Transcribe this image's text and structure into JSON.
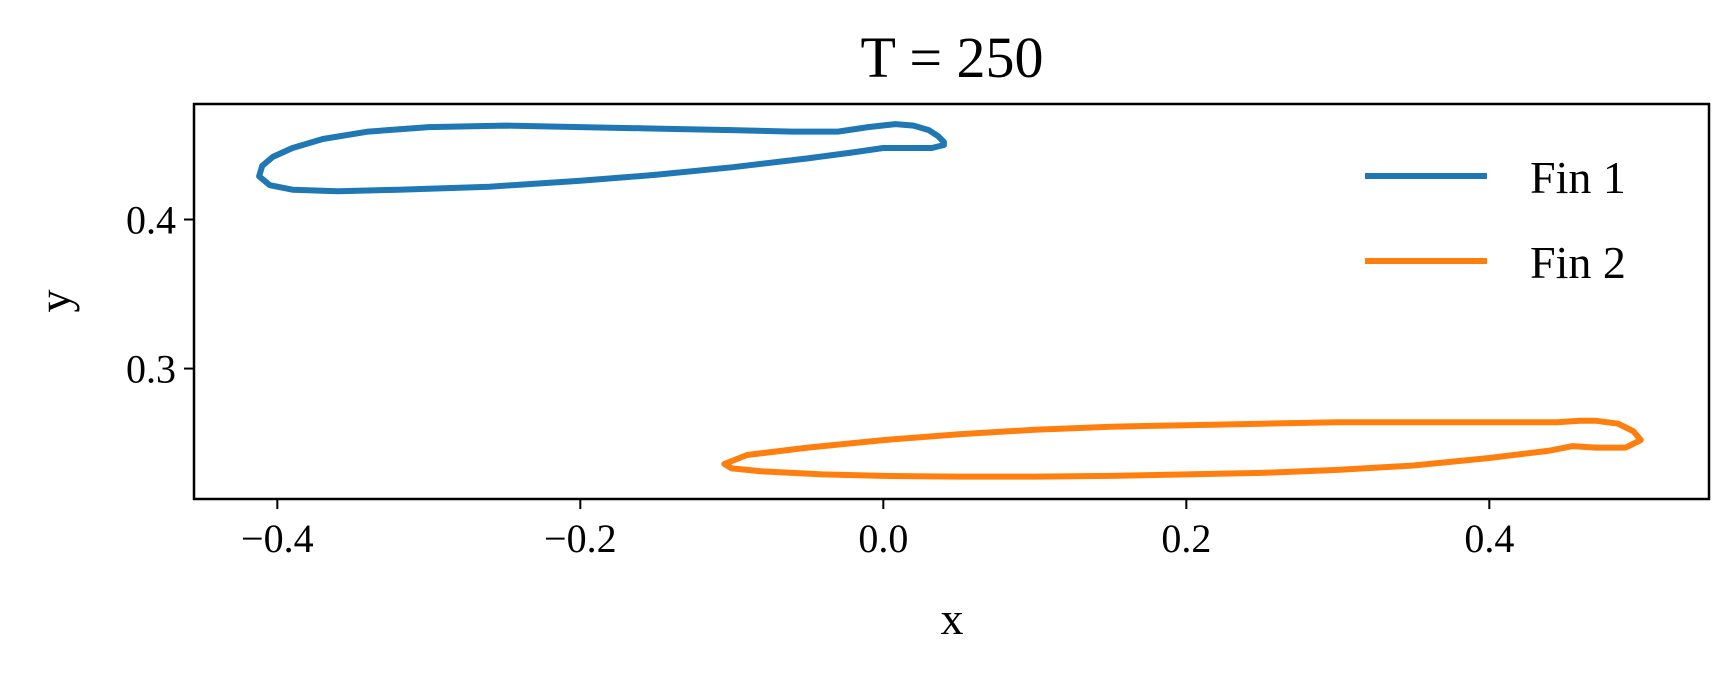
{
  "chart_data": {
    "type": "line",
    "title": "T = 250",
    "xlabel": "x",
    "ylabel": "y",
    "xlim": [
      -0.455,
      0.545
    ],
    "ylim": [
      0.2125,
      0.4775
    ],
    "xticks": [
      -0.4,
      -0.2,
      0.0,
      0.2,
      0.4
    ],
    "xtick_labels": [
      "−0.4",
      "−0.2",
      "0.0",
      "0.2",
      "0.4"
    ],
    "yticks": [
      0.3,
      0.4
    ],
    "ytick_labels": [
      "0.3",
      "0.4"
    ],
    "grid": false,
    "legend_position": "top-right",
    "series": [
      {
        "name": "Fin 1",
        "color": "#1f77b4",
        "x": [
          0.04,
          0.036,
          0.03,
          0.02,
          0.008,
          -0.01,
          -0.03,
          -0.06,
          -0.1,
          -0.15,
          -0.2,
          -0.25,
          -0.3,
          -0.34,
          -0.37,
          -0.39,
          -0.403,
          -0.41,
          -0.412,
          -0.405,
          -0.39,
          -0.36,
          -0.32,
          -0.26,
          -0.2,
          -0.15,
          -0.1,
          -0.05,
          -0.02,
          0.0,
          0.02,
          0.032,
          0.04
        ],
        "y": [
          0.452,
          0.456,
          0.46,
          0.463,
          0.464,
          0.462,
          0.459,
          0.459,
          0.46,
          0.461,
          0.462,
          0.463,
          0.462,
          0.459,
          0.454,
          0.448,
          0.442,
          0.436,
          0.429,
          0.423,
          0.42,
          0.419,
          0.42,
          0.422,
          0.426,
          0.43,
          0.435,
          0.441,
          0.445,
          0.448,
          0.448,
          0.448,
          0.45
        ]
      },
      {
        "name": "Fin 2",
        "color": "#ff7f0e",
        "x": [
          0.5,
          0.495,
          0.485,
          0.47,
          0.46,
          0.445,
          0.44,
          0.4,
          0.35,
          0.3,
          0.25,
          0.2,
          0.15,
          0.1,
          0.05,
          0.0,
          -0.05,
          -0.09,
          -0.105,
          -0.1,
          -0.08,
          -0.04,
          0.0,
          0.05,
          0.1,
          0.15,
          0.2,
          0.25,
          0.3,
          0.35,
          0.4,
          0.44,
          0.455,
          0.47,
          0.49,
          0.5
        ],
        "y": [
          0.252,
          0.258,
          0.263,
          0.265,
          0.265,
          0.264,
          0.264,
          0.264,
          0.264,
          0.264,
          0.263,
          0.262,
          0.261,
          0.259,
          0.256,
          0.252,
          0.247,
          0.242,
          0.236,
          0.233,
          0.231,
          0.229,
          0.228,
          0.2275,
          0.2275,
          0.228,
          0.229,
          0.23,
          0.232,
          0.235,
          0.24,
          0.245,
          0.248,
          0.247,
          0.247,
          0.252
        ]
      }
    ]
  }
}
